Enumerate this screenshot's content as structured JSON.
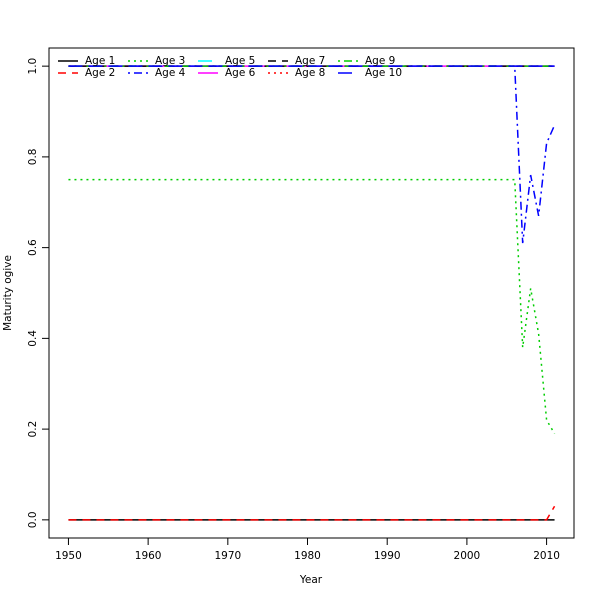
{
  "chart_data": {
    "type": "line",
    "xlabel": "Year",
    "ylabel": "Maturity ogive",
    "x": [
      1950,
      1951,
      1952,
      1953,
      1954,
      1955,
      1956,
      1957,
      1958,
      1959,
      1960,
      1961,
      1962,
      1963,
      1964,
      1965,
      1966,
      1967,
      1968,
      1969,
      1970,
      1971,
      1972,
      1973,
      1974,
      1975,
      1976,
      1977,
      1978,
      1979,
      1980,
      1981,
      1982,
      1983,
      1984,
      1985,
      1986,
      1987,
      1988,
      1989,
      1990,
      1991,
      1992,
      1993,
      1994,
      1995,
      1996,
      1997,
      1998,
      1999,
      2000,
      2001,
      2002,
      2003,
      2004,
      2005,
      2006,
      2007,
      2008,
      2009,
      2010,
      2011
    ],
    "xlim": [
      1947.56,
      2013.44
    ],
    "xticks": [
      1950,
      1960,
      1970,
      1980,
      1990,
      2000,
      2010
    ],
    "ylim": [
      -0.04,
      1.04
    ],
    "yticks": [
      {
        "value": 0,
        "label": "0.0"
      },
      0.2,
      0.4,
      0.6,
      0.8,
      {
        "value": 1,
        "label": "1.0"
      }
    ],
    "legend": "top-left",
    "series": [
      {
        "name": "Age 1",
        "color": "#000000",
        "linestyle": "solid",
        "values": [
          0,
          0,
          0,
          0,
          0,
          0,
          0,
          0,
          0,
          0,
          0,
          0,
          0,
          0,
          0,
          0,
          0,
          0,
          0,
          0,
          0,
          0,
          0,
          0,
          0,
          0,
          0,
          0,
          0,
          0,
          0,
          0,
          0,
          0,
          0,
          0,
          0,
          0,
          0,
          0,
          0,
          0,
          0,
          0,
          0,
          0,
          0,
          0,
          0,
          0,
          0,
          0,
          0,
          0,
          0,
          0,
          0,
          0,
          0,
          0,
          0,
          0
        ]
      },
      {
        "name": "Age 2",
        "color": "#ff0000",
        "linestyle": "dashed",
        "values": [
          0,
          0,
          0,
          0,
          0,
          0,
          0,
          0,
          0,
          0,
          0,
          0,
          0,
          0,
          0,
          0,
          0,
          0,
          0,
          0,
          0,
          0,
          0,
          0,
          0,
          0,
          0,
          0,
          0,
          0,
          0,
          0,
          0,
          0,
          0,
          0,
          0,
          0,
          0,
          0,
          0,
          0,
          0,
          0,
          0,
          0,
          0,
          0,
          0,
          0,
          0,
          0,
          0,
          0,
          0,
          0,
          0,
          0,
          0,
          0,
          0,
          0.03
        ]
      },
      {
        "name": "Age 3",
        "color": "#00cd00",
        "linestyle": "dotted",
        "values": [
          0.75,
          0.75,
          0.75,
          0.75,
          0.75,
          0.75,
          0.75,
          0.75,
          0.75,
          0.75,
          0.75,
          0.75,
          0.75,
          0.75,
          0.75,
          0.75,
          0.75,
          0.75,
          0.75,
          0.75,
          0.75,
          0.75,
          0.75,
          0.75,
          0.75,
          0.75,
          0.75,
          0.75,
          0.75,
          0.75,
          0.75,
          0.75,
          0.75,
          0.75,
          0.75,
          0.75,
          0.75,
          0.75,
          0.75,
          0.75,
          0.75,
          0.75,
          0.75,
          0.75,
          0.75,
          0.75,
          0.75,
          0.75,
          0.75,
          0.75,
          0.75,
          0.75,
          0.75,
          0.75,
          0.75,
          0.75,
          0.75,
          0.38,
          0.51,
          0.41,
          0.22,
          0.19
        ]
      },
      {
        "name": "Age 4",
        "color": "#0000ff",
        "linestyle": "dotdash",
        "values": [
          1,
          1,
          1,
          1,
          1,
          1,
          1,
          1,
          1,
          1,
          1,
          1,
          1,
          1,
          1,
          1,
          1,
          1,
          1,
          1,
          1,
          1,
          1,
          1,
          1,
          1,
          1,
          1,
          1,
          1,
          1,
          1,
          1,
          1,
          1,
          1,
          1,
          1,
          1,
          1,
          1,
          1,
          1,
          1,
          1,
          1,
          1,
          1,
          1,
          1,
          1,
          1,
          1,
          1,
          1,
          1,
          1,
          0.61,
          0.76,
          0.67,
          0.83,
          0.87
        ]
      },
      {
        "name": "Age 5",
        "color": "#00ffff",
        "linestyle": "longdash",
        "values": [
          1,
          1,
          1,
          1,
          1,
          1,
          1,
          1,
          1,
          1,
          1,
          1,
          1,
          1,
          1,
          1,
          1,
          1,
          1,
          1,
          1,
          1,
          1,
          1,
          1,
          1,
          1,
          1,
          1,
          1,
          1,
          1,
          1,
          1,
          1,
          1,
          1,
          1,
          1,
          1,
          1,
          1,
          1,
          1,
          1,
          1,
          1,
          1,
          1,
          1,
          1,
          1,
          1,
          1,
          1,
          1,
          1,
          1,
          1,
          1,
          1,
          1
        ]
      },
      {
        "name": "Age 6",
        "color": "#ff00ff",
        "linestyle": "solid",
        "values": [
          1,
          1,
          1,
          1,
          1,
          1,
          1,
          1,
          1,
          1,
          1,
          1,
          1,
          1,
          1,
          1,
          1,
          1,
          1,
          1,
          1,
          1,
          1,
          1,
          1,
          1,
          1,
          1,
          1,
          1,
          1,
          1,
          1,
          1,
          1,
          1,
          1,
          1,
          1,
          1,
          1,
          1,
          1,
          1,
          1,
          1,
          1,
          1,
          1,
          1,
          1,
          1,
          1,
          1,
          1,
          1,
          1,
          1,
          1,
          1,
          1,
          1
        ]
      },
      {
        "name": "Age 7",
        "color": "#000000",
        "linestyle": "dashed",
        "values": [
          1,
          1,
          1,
          1,
          1,
          1,
          1,
          1,
          1,
          1,
          1,
          1,
          1,
          1,
          1,
          1,
          1,
          1,
          1,
          1,
          1,
          1,
          1,
          1,
          1,
          1,
          1,
          1,
          1,
          1,
          1,
          1,
          1,
          1,
          1,
          1,
          1,
          1,
          1,
          1,
          1,
          1,
          1,
          1,
          1,
          1,
          1,
          1,
          1,
          1,
          1,
          1,
          1,
          1,
          1,
          1,
          1,
          1,
          1,
          1,
          1,
          1
        ]
      },
      {
        "name": "Age 8",
        "color": "#ff0000",
        "linestyle": "dotted",
        "values": [
          1,
          1,
          1,
          1,
          1,
          1,
          1,
          1,
          1,
          1,
          1,
          1,
          1,
          1,
          1,
          1,
          1,
          1,
          1,
          1,
          1,
          1,
          1,
          1,
          1,
          1,
          1,
          1,
          1,
          1,
          1,
          1,
          1,
          1,
          1,
          1,
          1,
          1,
          1,
          1,
          1,
          1,
          1,
          1,
          1,
          1,
          1,
          1,
          1,
          1,
          1,
          1,
          1,
          1,
          1,
          1,
          1,
          1,
          1,
          1,
          1,
          1
        ]
      },
      {
        "name": "Age 9",
        "color": "#00cd00",
        "linestyle": "dotdash",
        "values": [
          1,
          1,
          1,
          1,
          1,
          1,
          1,
          1,
          1,
          1,
          1,
          1,
          1,
          1,
          1,
          1,
          1,
          1,
          1,
          1,
          1,
          1,
          1,
          1,
          1,
          1,
          1,
          1,
          1,
          1,
          1,
          1,
          1,
          1,
          1,
          1,
          1,
          1,
          1,
          1,
          1,
          1,
          1,
          1,
          1,
          1,
          1,
          1,
          1,
          1,
          1,
          1,
          1,
          1,
          1,
          1,
          1,
          1,
          1,
          1,
          1,
          1
        ]
      },
      {
        "name": "Age 10",
        "color": "#0000ff",
        "linestyle": "longdash",
        "values": [
          1,
          1,
          1,
          1,
          1,
          1,
          1,
          1,
          1,
          1,
          1,
          1,
          1,
          1,
          1,
          1,
          1,
          1,
          1,
          1,
          1,
          1,
          1,
          1,
          1,
          1,
          1,
          1,
          1,
          1,
          1,
          1,
          1,
          1,
          1,
          1,
          1,
          1,
          1,
          1,
          1,
          1,
          1,
          1,
          1,
          1,
          1,
          1,
          1,
          1,
          1,
          1,
          1,
          1,
          1,
          1,
          1,
          1,
          1,
          1,
          1,
          1
        ]
      }
    ]
  }
}
